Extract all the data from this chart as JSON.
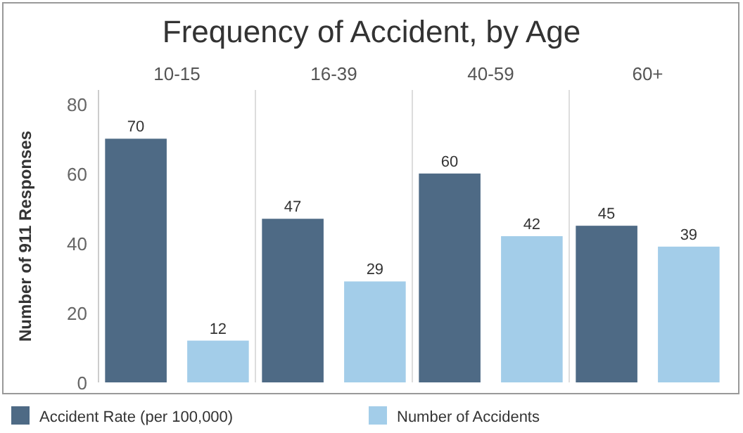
{
  "chart_data": {
    "type": "bar",
    "title": "Frequency of Accident, by Age",
    "ylabel": "Number of 911 Responses",
    "categories": [
      "10-15",
      "16-39",
      "40-59",
      "60+"
    ],
    "series": [
      {
        "name": "Accident Rate (per 100,000)",
        "color": "#4e6a85",
        "values": [
          70,
          47,
          60,
          45
        ]
      },
      {
        "name": "Number of Accidents",
        "color": "#a3cde9",
        "values": [
          12,
          29,
          42,
          39
        ]
      }
    ],
    "ylim": [
      0,
      84
    ],
    "yticks": [
      0,
      20,
      40,
      60,
      80
    ],
    "grid": false,
    "legend": "bottom",
    "data_labels": true
  }
}
